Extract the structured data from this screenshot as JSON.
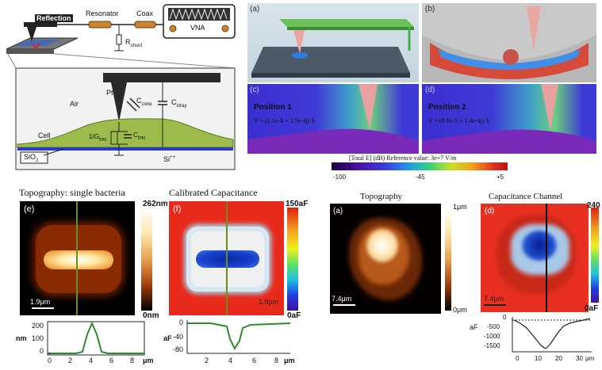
{
  "schematic": {
    "reflection": "Reflection",
    "resonator": "Resonator",
    "coax": "Coax",
    "vna": "VNA",
    "rshunt": "R",
    "rshunt_sub": "shunt",
    "air": "Air",
    "pt": "Pt",
    "ccone": "C",
    "ccone_sub": "cone",
    "cstray": "C",
    "cstray_sub": "stray",
    "cell": "Cell",
    "gbulk": "1/G",
    "gbulk_sub": "bac",
    "cbulk": "C",
    "cbulk_sub": "bac",
    "sio2": "SiO",
    "sio2_sub": "2",
    "si": "Si",
    "si_sup": "++"
  },
  "sim": {
    "a": "(a)",
    "b": "(b)",
    "c": "(c)",
    "d": "(d)",
    "pos1": "Position 1",
    "pos1_y": "Y = (1.1e-4 + 2.5e-4j) S",
    "pos2": "Position 2",
    "pos2_y": "Y = (8.6e-5 + 1.4e-4j) S",
    "colorbar_title": "[Total E] (dB) Reference value: 3e+7 V/m",
    "ticks": [
      "-100",
      "-45",
      "+5"
    ]
  },
  "bottom_left": {
    "title_e": "Topography: single bacteria",
    "title_f": "Calibrated Capacitance",
    "label_e": "(e)",
    "label_f": "(f)",
    "cbar_e_top": "262nm",
    "cbar_e_bot": "0nm",
    "cbar_f_top": "150aF",
    "cbar_f_bot": "0aF",
    "scale_e": "1.9μm",
    "scale_f": "1.9μm",
    "profile_e": {
      "ylabel": "nm",
      "xlabel": "μm",
      "yticks": [
        "200",
        "100",
        "0"
      ],
      "xticks": [
        "0",
        "2",
        "4",
        "6",
        "8"
      ]
    },
    "profile_f": {
      "ylabel": "aF",
      "xlabel": "μm",
      "yticks": [
        "0",
        "-40",
        "-80"
      ],
      "xticks": [
        "2",
        "4",
        "6",
        "8"
      ]
    }
  },
  "bottom_right": {
    "title_a": "Topography",
    "title_d": "Capacitance Channel",
    "label_a": "(a)",
    "label_d": "(d)",
    "cbar_a_top": "1μm",
    "cbar_a_bot": "0μm",
    "cbar_d_top": "240",
    "cbar_d_bot": "0aF",
    "scale_a": "7.4μm",
    "scale_d": "7.4μm",
    "profile_d": {
      "ylabel": "aF",
      "xlabel": "μm",
      "yticks": [
        "0",
        "-500",
        "-1000",
        "-1500"
      ],
      "xticks": [
        "0",
        "10",
        "20",
        "30"
      ]
    }
  },
  "colors": {
    "profile_green": "#2e8b2e",
    "cut_line_green": "#6b8e23",
    "sim_blue": "#3a2fd0",
    "cell_green": "#9dbb4b"
  }
}
